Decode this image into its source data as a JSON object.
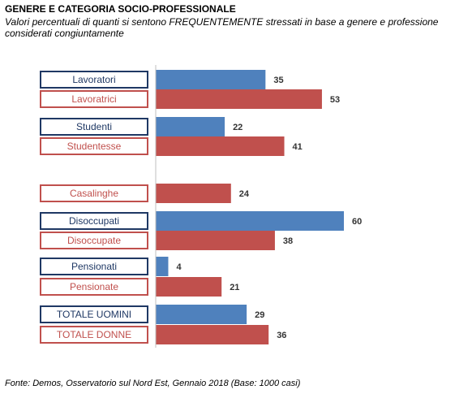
{
  "title": "GENERE E CATEGORIA  SOCIO-PROFESSIONALE",
  "subtitle": "Valori percentuali di quanti si sentono FREQUENTEMENTE stressati in base a genere e professione considerati congiuntamente",
  "source": "Fonte: Demos, Osservatorio sul Nord Est, Gennaio  2018 (Base: 1000 casi)",
  "colors": {
    "male": "#4F81BD",
    "female": "#C0504D",
    "male_border": "#1F3864",
    "female_border": "#C0504D"
  },
  "chart_data": {
    "type": "bar",
    "orientation": "horizontal",
    "xlim": [
      0,
      60
    ],
    "grid": false,
    "categories": [
      "Lavoratori",
      "Lavoratrici",
      "Studenti",
      "Studentesse",
      "Casalinghe",
      "Disoccupati",
      "Disoccupate",
      "Pensionati",
      "Pensionate",
      "TOTALE UOMINI",
      "TOTALE DONNE"
    ],
    "values": [
      35,
      53,
      22,
      41,
      24,
      60,
      38,
      4,
      21,
      29,
      36
    ],
    "gender": [
      "male",
      "female",
      "male",
      "female",
      "female",
      "male",
      "female",
      "male",
      "female",
      "male",
      "female"
    ]
  }
}
